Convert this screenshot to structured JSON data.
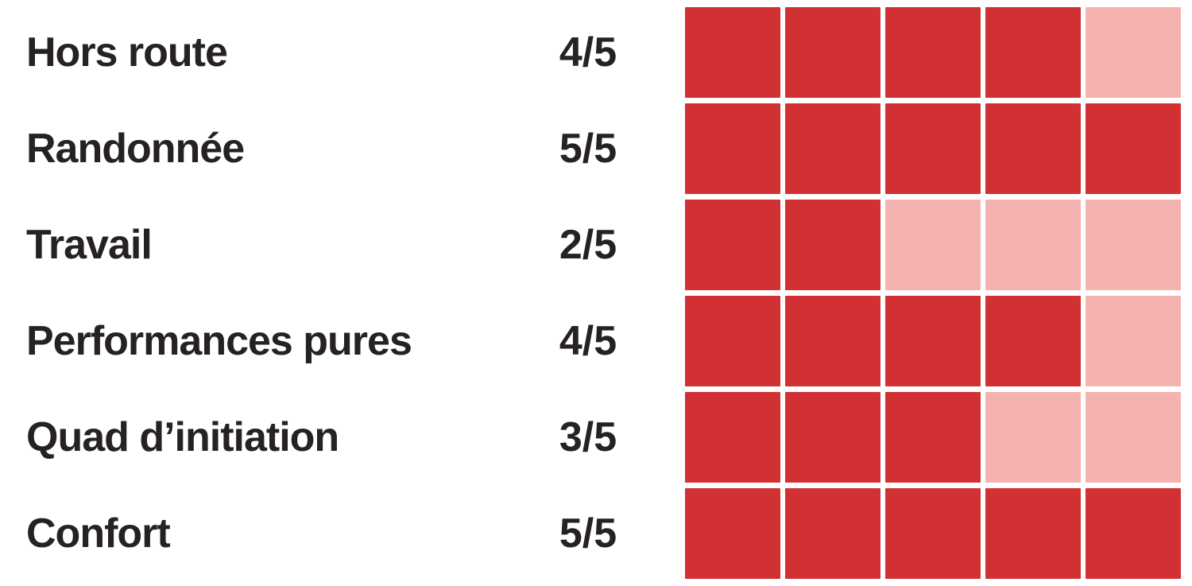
{
  "chart_data": {
    "type": "bar",
    "variant": "rating-squares",
    "title": "",
    "categories": [
      "Hors route",
      "Randonnée",
      "Travail",
      "Performances pures",
      "Quad d’initiation",
      "Confort"
    ],
    "values": [
      4,
      5,
      2,
      4,
      3,
      5
    ],
    "max": 5,
    "score_labels": [
      "4/5",
      "5/5",
      "2/5",
      "4/5",
      "3/5",
      "5/5"
    ],
    "cells_per_row": 5,
    "legend": "none",
    "grid": "off",
    "colors": {
      "filled": "#d23133",
      "unfilled": "#f5b3b0",
      "text": "#262223",
      "background": "#ffffff"
    }
  }
}
